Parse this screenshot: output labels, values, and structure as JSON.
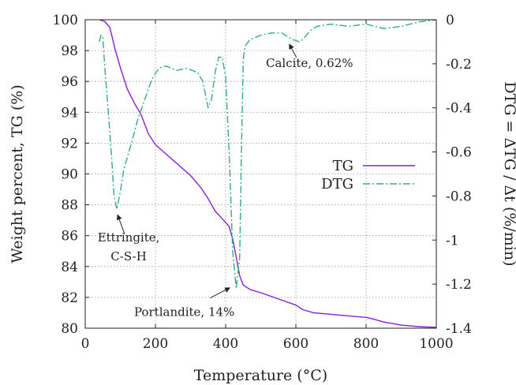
{
  "chart_data": {
    "type": "line",
    "title": "",
    "xlabel": "Temperature (°C)",
    "ylabel": "Weight percent, TG (%)",
    "y2label": "DTG = ΔTG / Δt (%/min)",
    "xlim": [
      0,
      1000
    ],
    "ylim": [
      80,
      100
    ],
    "y2lim": [
      -1.4,
      0
    ],
    "grid": true,
    "legend_position": "center-right",
    "x_ticks": [
      "0",
      "200",
      "400",
      "600",
      "800",
      "1000"
    ],
    "y_ticks": [
      "80",
      "82",
      "84",
      "86",
      "88",
      "90",
      "92",
      "94",
      "96",
      "98",
      "100"
    ],
    "y2_ticks": [
      "-1.4",
      "-1.2",
      "-1",
      "-0.8",
      "-0.6",
      "-0.4",
      "-0.2",
      "0"
    ],
    "series": [
      {
        "name": "TG",
        "axis": "left",
        "color": "#8a1fd6",
        "style": "solid",
        "points": [
          [
            40,
            100
          ],
          [
            55,
            99.9
          ],
          [
            70,
            99.5
          ],
          [
            85,
            98.1
          ],
          [
            100,
            96.9
          ],
          [
            120,
            95.5
          ],
          [
            140,
            94.6
          ],
          [
            160,
            93.8
          ],
          [
            180,
            92.6
          ],
          [
            200,
            91.9
          ],
          [
            230,
            91.3
          ],
          [
            260,
            90.7
          ],
          [
            300,
            89.9
          ],
          [
            330,
            89.1
          ],
          [
            350,
            88.4
          ],
          [
            370,
            87.6
          ],
          [
            390,
            87.1
          ],
          [
            410,
            86.6
          ],
          [
            420,
            85.8
          ],
          [
            430,
            84.6
          ],
          [
            440,
            83.4
          ],
          [
            450,
            82.8
          ],
          [
            470,
            82.5
          ],
          [
            500,
            82.3
          ],
          [
            550,
            81.9
          ],
          [
            600,
            81.5
          ],
          [
            620,
            81.2
          ],
          [
            650,
            81.0
          ],
          [
            700,
            80.9
          ],
          [
            750,
            80.8
          ],
          [
            800,
            80.7
          ],
          [
            820,
            80.6
          ],
          [
            850,
            80.4
          ],
          [
            900,
            80.2
          ],
          [
            950,
            80.1
          ],
          [
            1000,
            80.05
          ]
        ]
      },
      {
        "name": "DTG",
        "axis": "right",
        "color": "#2fb07a",
        "style": "dash-dot",
        "points": [
          [
            40,
            -0.1
          ],
          [
            45,
            -0.07
          ],
          [
            50,
            -0.08
          ],
          [
            55,
            -0.2
          ],
          [
            65,
            -0.4
          ],
          [
            75,
            -0.62
          ],
          [
            82,
            -0.8
          ],
          [
            90,
            -0.86
          ],
          [
            100,
            -0.78
          ],
          [
            110,
            -0.68
          ],
          [
            130,
            -0.57
          ],
          [
            150,
            -0.45
          ],
          [
            170,
            -0.36
          ],
          [
            190,
            -0.27
          ],
          [
            210,
            -0.22
          ],
          [
            230,
            -0.21
          ],
          [
            260,
            -0.23
          ],
          [
            290,
            -0.22
          ],
          [
            320,
            -0.24
          ],
          [
            335,
            -0.28
          ],
          [
            350,
            -0.4
          ],
          [
            360,
            -0.36
          ],
          [
            370,
            -0.24
          ],
          [
            380,
            -0.17
          ],
          [
            390,
            -0.17
          ],
          [
            400,
            -0.26
          ],
          [
            410,
            -0.6
          ],
          [
            420,
            -1.05
          ],
          [
            430,
            -1.22
          ],
          [
            440,
            -1.08
          ],
          [
            445,
            -0.6
          ],
          [
            450,
            -0.18
          ],
          [
            455,
            -0.12
          ],
          [
            470,
            -0.09
          ],
          [
            500,
            -0.07
          ],
          [
            530,
            -0.06
          ],
          [
            560,
            -0.06
          ],
          [
            590,
            -0.09
          ],
          [
            610,
            -0.1
          ],
          [
            620,
            -0.09
          ],
          [
            640,
            -0.05
          ],
          [
            660,
            -0.03
          ],
          [
            700,
            -0.02
          ],
          [
            750,
            -0.03
          ],
          [
            800,
            -0.02
          ],
          [
            850,
            -0.04
          ],
          [
            900,
            -0.03
          ],
          [
            950,
            -0.01
          ],
          [
            1000,
            0.0
          ]
        ]
      }
    ],
    "annotations": [
      {
        "text": "Ettringite,",
        "text2": "C-S-H",
        "x": 90,
        "y2": -0.86
      },
      {
        "text": "Portlandite, 14%",
        "x": 430,
        "y2": -1.22
      },
      {
        "text": "Calcite, 0.62%",
        "x": 615,
        "y2": -0.1
      }
    ]
  }
}
